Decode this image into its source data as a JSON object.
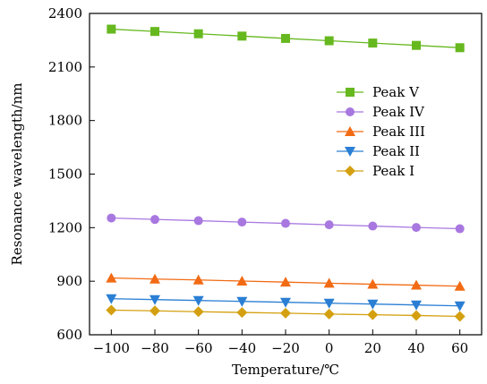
{
  "chart_data": {
    "type": "line",
    "title": "",
    "xlabel": "Temperature/℃",
    "ylabel": "Resonance wavelength/nm",
    "xlim": [
      -110,
      70
    ],
    "ylim": [
      600,
      2400
    ],
    "xticks": [
      -100,
      -80,
      -60,
      -40,
      -20,
      0,
      20,
      40,
      60
    ],
    "xtick_labels": [
      "−100",
      "−80",
      "−60",
      "−40",
      "−20",
      "0",
      "20",
      "40",
      "60"
    ],
    "yticks": [
      600,
      900,
      1200,
      1500,
      1800,
      2100,
      2400
    ],
    "ytick_labels": [
      "600",
      "900",
      "1200",
      "1500",
      "1800",
      "2100",
      "2400"
    ],
    "grid": false,
    "legend_position": "right",
    "x": [
      -100,
      -80,
      -60,
      -40,
      -20,
      0,
      20,
      40,
      60
    ],
    "series": [
      {
        "name": "Peak V",
        "color": "#66b81f",
        "marker": "square",
        "values": [
          2312,
          2299,
          2286,
          2273,
          2260,
          2247,
          2234,
          2221,
          2208
        ]
      },
      {
        "name": "Peak IV",
        "color": "#a878e0",
        "marker": "circle",
        "values": [
          1254,
          1246,
          1239,
          1231,
          1224,
          1216,
          1209,
          1201,
          1194
        ]
      },
      {
        "name": "Peak III",
        "color": "#f26b14",
        "marker": "triangle-up",
        "values": [
          918,
          912,
          907,
          901,
          895,
          889,
          883,
          878,
          872
        ]
      },
      {
        "name": "Peak II",
        "color": "#2a7fd4",
        "marker": "triangle-down",
        "values": [
          802,
          797,
          792,
          787,
          782,
          777,
          772,
          767,
          762
        ]
      },
      {
        "name": "Peak I",
        "color": "#d4a010",
        "marker": "diamond",
        "values": [
          738,
          734,
          729,
          725,
          721,
          716,
          712,
          708,
          703
        ]
      }
    ]
  }
}
